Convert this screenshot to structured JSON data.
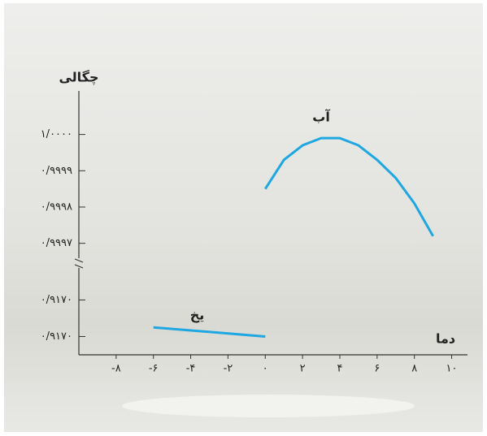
{
  "chart_data": {
    "type": "line",
    "x_label": "دما",
    "y_label": "چگالی",
    "xlim": [
      -10,
      10.5
    ],
    "xticks": [
      {
        "value": -8,
        "label": "-۸"
      },
      {
        "value": -6,
        "label": "-۶"
      },
      {
        "value": -4,
        "label": "-۴"
      },
      {
        "value": -2,
        "label": "-۲"
      },
      {
        "value": 0,
        "label": "۰"
      },
      {
        "value": 2,
        "label": "۲"
      },
      {
        "value": 4,
        "label": "۴"
      },
      {
        "value": 6,
        "label": "۶"
      },
      {
        "value": 8,
        "label": "۸"
      },
      {
        "value": 10,
        "label": "۱۰"
      }
    ],
    "ylim": [
      0.99965,
      1.00012
    ],
    "yticks": [
      {
        "value": 1.0,
        "label": "۱/۰۰۰۰"
      },
      {
        "value": 0.9999,
        "label": "۰/۹۹۹۹"
      },
      {
        "value": 0.9998,
        "label": "۰/۹۹۹۸"
      },
      {
        "value": 0.9997,
        "label": "۰/۹۹۹۷"
      }
    ],
    "y2lim": [
      0.91692,
      0.91711
    ],
    "y2ticks": [
      {
        "value": 0.91704,
        "label": "۰/۹۱۷۰"
      },
      {
        "value": 0.91696,
        "label": "۰/۹۱۷۰"
      }
    ],
    "series": [
      {
        "name": "آب",
        "color": "#1ea7e1",
        "x": [
          0,
          1,
          2,
          3,
          4,
          5,
          6,
          7,
          8,
          9
        ],
        "values": [
          0.99985,
          0.99993,
          0.99997,
          0.99999,
          0.99999,
          0.99997,
          0.99993,
          0.99988,
          0.99981,
          0.99972
        ]
      },
      {
        "name": "یخ",
        "color": "#1ea7e1",
        "axis": "y2",
        "x": [
          -6,
          0
        ],
        "values": [
          0.91698,
          0.91696
        ]
      }
    ]
  }
}
